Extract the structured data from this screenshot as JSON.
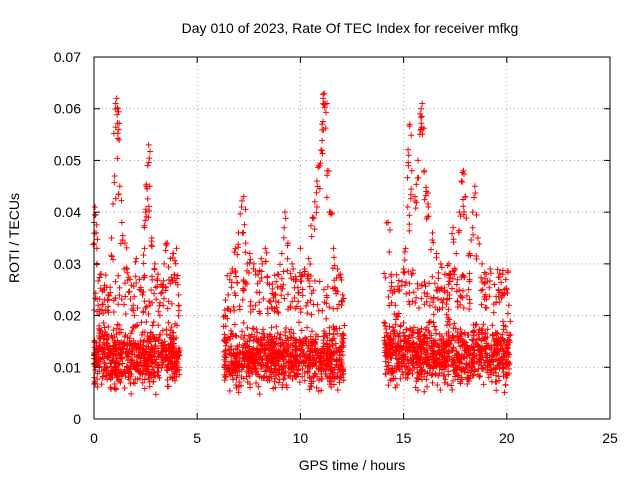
{
  "chart_data": {
    "type": "scatter",
    "title": "Day 010 of 2023, Rate Of TEC Index for receiver mfkg",
    "xlabel": "GPS time / hours",
    "ylabel": "ROTI / TECUs",
    "xlim": [
      0,
      25
    ],
    "ylim": [
      0,
      0.07
    ],
    "xticks": [
      0,
      5,
      10,
      15,
      20,
      25
    ],
    "xtick_labels": [
      "0",
      "5",
      "10",
      "15",
      "20",
      "25"
    ],
    "yticks": [
      0,
      0.01,
      0.02,
      0.03,
      0.04,
      0.05,
      0.06,
      0.07
    ],
    "ytick_labels": [
      "0",
      "0.01",
      "0.02",
      "0.03",
      "0.04",
      "0.05",
      "0.06",
      "0.07"
    ],
    "grid": true,
    "marker": "plus",
    "color": "#ff0000",
    "series": [
      {
        "name": "ROTI",
        "points": [
          [
            0.0,
            0.038
          ],
          [
            0.05,
            0.041
          ],
          [
            0.1,
            0.036
          ],
          [
            0.15,
            0.03
          ],
          [
            0.2,
            0.022
          ],
          [
            0.25,
            0.018
          ],
          [
            0.35,
            0.028
          ],
          [
            0.45,
            0.025
          ],
          [
            0.55,
            0.021
          ],
          [
            0.7,
            0.024
          ],
          [
            0.85,
            0.035
          ],
          [
            1.0,
            0.047
          ],
          [
            1.05,
            0.061
          ],
          [
            1.1,
            0.062
          ],
          [
            1.15,
            0.06
          ],
          [
            1.2,
            0.056
          ],
          [
            1.25,
            0.045
          ],
          [
            1.35,
            0.038
          ],
          [
            1.5,
            0.034
          ],
          [
            1.6,
            0.029
          ],
          [
            1.75,
            0.027
          ],
          [
            1.9,
            0.022
          ],
          [
            2.05,
            0.031
          ],
          [
            2.2,
            0.027
          ],
          [
            2.35,
            0.024
          ],
          [
            2.45,
            0.033
          ],
          [
            2.5,
            0.04
          ],
          [
            2.55,
            0.045
          ],
          [
            2.6,
            0.049
          ],
          [
            2.65,
            0.053
          ],
          [
            2.7,
            0.045
          ],
          [
            2.8,
            0.035
          ],
          [
            2.95,
            0.03
          ],
          [
            3.1,
            0.028
          ],
          [
            3.25,
            0.026
          ],
          [
            3.4,
            0.03
          ],
          [
            3.55,
            0.034
          ],
          [
            3.7,
            0.031
          ],
          [
            3.85,
            0.032
          ],
          [
            4.0,
            0.033
          ],
          [
            4.1,
            0.024
          ],
          [
            6.35,
            0.02
          ],
          [
            6.5,
            0.024
          ],
          [
            6.7,
            0.029
          ],
          [
            6.85,
            0.033
          ],
          [
            7.0,
            0.036
          ],
          [
            7.15,
            0.041
          ],
          [
            7.25,
            0.043
          ],
          [
            7.35,
            0.034
          ],
          [
            7.55,
            0.032
          ],
          [
            7.75,
            0.03
          ],
          [
            7.95,
            0.028
          ],
          [
            8.1,
            0.031
          ],
          [
            8.3,
            0.033
          ],
          [
            8.5,
            0.026
          ],
          [
            8.7,
            0.024
          ],
          [
            8.9,
            0.028
          ],
          [
            9.1,
            0.032
          ],
          [
            9.25,
            0.04
          ],
          [
            9.4,
            0.034
          ],
          [
            9.6,
            0.03
          ],
          [
            9.8,
            0.027
          ],
          [
            10.0,
            0.033
          ],
          [
            10.2,
            0.029
          ],
          [
            10.4,
            0.031
          ],
          [
            10.6,
            0.039
          ],
          [
            10.7,
            0.042
          ],
          [
            10.8,
            0.046
          ],
          [
            10.9,
            0.049
          ],
          [
            11.0,
            0.052
          ],
          [
            11.05,
            0.057
          ],
          [
            11.1,
            0.062
          ],
          [
            11.15,
            0.063
          ],
          [
            11.2,
            0.061
          ],
          [
            11.3,
            0.048
          ],
          [
            11.45,
            0.04
          ],
          [
            11.6,
            0.033
          ],
          [
            11.8,
            0.029
          ],
          [
            11.95,
            0.028
          ],
          [
            12.05,
            0.024
          ],
          [
            14.1,
            0.018
          ],
          [
            14.25,
            0.038
          ],
          [
            14.4,
            0.028
          ],
          [
            14.6,
            0.022
          ],
          [
            14.8,
            0.025
          ],
          [
            15.0,
            0.029
          ],
          [
            15.1,
            0.033
          ],
          [
            15.2,
            0.041
          ],
          [
            15.25,
            0.051
          ],
          [
            15.3,
            0.057
          ],
          [
            15.4,
            0.048
          ],
          [
            15.55,
            0.043
          ],
          [
            15.7,
            0.05
          ],
          [
            15.8,
            0.059
          ],
          [
            15.85,
            0.06
          ],
          [
            15.9,
            0.061
          ],
          [
            16.0,
            0.048
          ],
          [
            16.1,
            0.044
          ],
          [
            16.2,
            0.041
          ],
          [
            16.4,
            0.036
          ],
          [
            16.6,
            0.032
          ],
          [
            16.8,
            0.03
          ],
          [
            17.0,
            0.028
          ],
          [
            17.2,
            0.03
          ],
          [
            17.4,
            0.037
          ],
          [
            17.55,
            0.032
          ],
          [
            17.7,
            0.04
          ],
          [
            17.8,
            0.046
          ],
          [
            17.9,
            0.048
          ],
          [
            18.0,
            0.043
          ],
          [
            18.2,
            0.032
          ],
          [
            18.35,
            0.04
          ],
          [
            18.45,
            0.045
          ],
          [
            18.6,
            0.035
          ],
          [
            18.8,
            0.03
          ],
          [
            19.0,
            0.028
          ],
          [
            19.2,
            0.029
          ],
          [
            19.4,
            0.026
          ],
          [
            19.6,
            0.025
          ],
          [
            19.8,
            0.028
          ],
          [
            19.95,
            0.027
          ],
          [
            20.1,
            0.022
          ]
        ]
      }
    ],
    "dense_bands": [
      {
        "x_range": [
          0.0,
          4.15
        ],
        "y_band": [
          0.004,
          0.02
        ]
      },
      {
        "x_range": [
          6.3,
          12.1
        ],
        "y_band": [
          0.004,
          0.02
        ]
      },
      {
        "x_range": [
          14.05,
          20.15
        ],
        "y_band": [
          0.004,
          0.021
        ]
      }
    ]
  }
}
